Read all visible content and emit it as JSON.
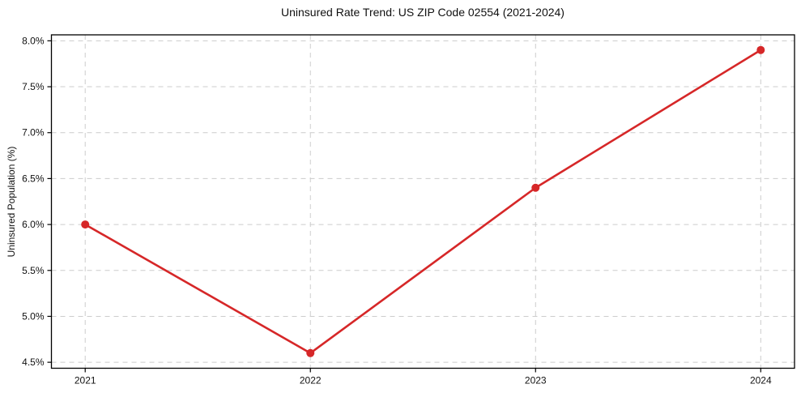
{
  "chart_data": {
    "type": "line",
    "title": "Uninsured Rate Trend: US ZIP Code 02554 (2021-2024)",
    "xlabel": "",
    "ylabel": "Uninsured Population (%)",
    "x": [
      2021,
      2022,
      2023,
      2024
    ],
    "values": [
      6.0,
      4.6,
      6.4,
      7.9
    ],
    "xtick_values": [
      2021,
      2022,
      2023,
      2024
    ],
    "xtick_labels": [
      "2021",
      "2022",
      "2023",
      "2024"
    ],
    "ytick_values": [
      4.5,
      5.0,
      5.5,
      6.0,
      6.5,
      7.0,
      7.5,
      8.0
    ],
    "ytick_labels": [
      "4.5%",
      "5.0%",
      "5.5%",
      "6.0%",
      "6.5%",
      "7.0%",
      "7.5%",
      "8.0%"
    ],
    "xlim": [
      2020.85,
      2024.15
    ],
    "ylim": [
      4.435,
      8.065
    ],
    "grid": true,
    "legend": false,
    "line_color": "#d62728",
    "marker": "circle",
    "grid_color": "#cccccc",
    "spine_color": "#000000",
    "text_color": "#111111",
    "background_color": "#ffffff"
  }
}
